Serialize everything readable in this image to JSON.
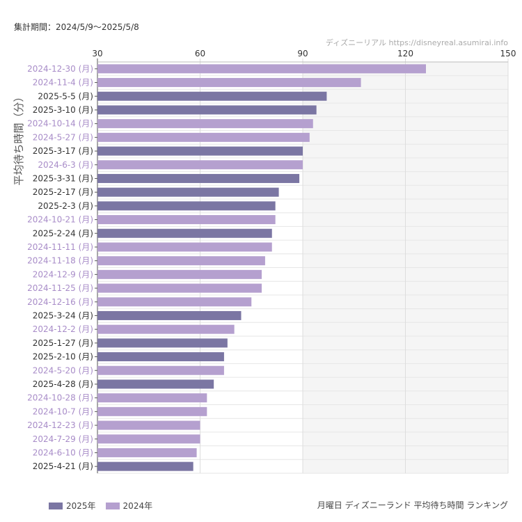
{
  "header": {
    "period": "集計期間：2024/5/9～2025/5/8",
    "source": "ディズニーリアル https://disneyreal.asumirai.info"
  },
  "footer": {
    "title": "月曜日 ディズニーランド 平均待ち時間 ランキング"
  },
  "legend": [
    {
      "label": "2025年",
      "color": "#7b76a3"
    },
    {
      "label": "2024年",
      "color": "#b5a0cf"
    }
  ],
  "chart_data": {
    "type": "bar",
    "orientation": "horizontal",
    "ylabel": "平均待ち時間（分）",
    "xlim": [
      30,
      150
    ],
    "xticks": [
      30,
      60,
      90,
      120,
      150
    ],
    "grid": true,
    "legend_position": "bottom-left",
    "colors": {
      "2025": "#7b76a3",
      "2024": "#b5a0cf"
    },
    "label_colors": {
      "2025": "#333333",
      "2024": "#a88cc8"
    },
    "categories": [
      "2024-12-30 (月)",
      "2024-11-4 (月)",
      "2025-5-5 (月)",
      "2025-3-10 (月)",
      "2024-10-14 (月)",
      "2024-5-27 (月)",
      "2025-3-17 (月)",
      "2024-6-3 (月)",
      "2025-3-31 (月)",
      "2025-2-17 (月)",
      "2025-2-3 (月)",
      "2024-10-21 (月)",
      "2025-2-24 (月)",
      "2024-11-11 (月)",
      "2024-11-18 (月)",
      "2024-12-9 (月)",
      "2024-11-25 (月)",
      "2024-12-16 (月)",
      "2025-3-24 (月)",
      "2024-12-2 (月)",
      "2025-1-27 (月)",
      "2025-2-10 (月)",
      "2024-5-20 (月)",
      "2025-4-28 (月)",
      "2024-10-28 (月)",
      "2024-10-7 (月)",
      "2024-12-23 (月)",
      "2024-7-29 (月)",
      "2024-6-10 (月)",
      "2025-4-21 (月)"
    ],
    "years": [
      "2024",
      "2024",
      "2025",
      "2025",
      "2024",
      "2024",
      "2025",
      "2024",
      "2025",
      "2025",
      "2025",
      "2024",
      "2025",
      "2024",
      "2024",
      "2024",
      "2024",
      "2024",
      "2025",
      "2024",
      "2025",
      "2025",
      "2024",
      "2025",
      "2024",
      "2024",
      "2024",
      "2024",
      "2024",
      "2025"
    ],
    "values": [
      126,
      107,
      97,
      94,
      93,
      92,
      90,
      90,
      89,
      83,
      82,
      82,
      81,
      81,
      79,
      78,
      78,
      75,
      72,
      70,
      68,
      67,
      67,
      64,
      62,
      62,
      60,
      60,
      59,
      58
    ]
  }
}
